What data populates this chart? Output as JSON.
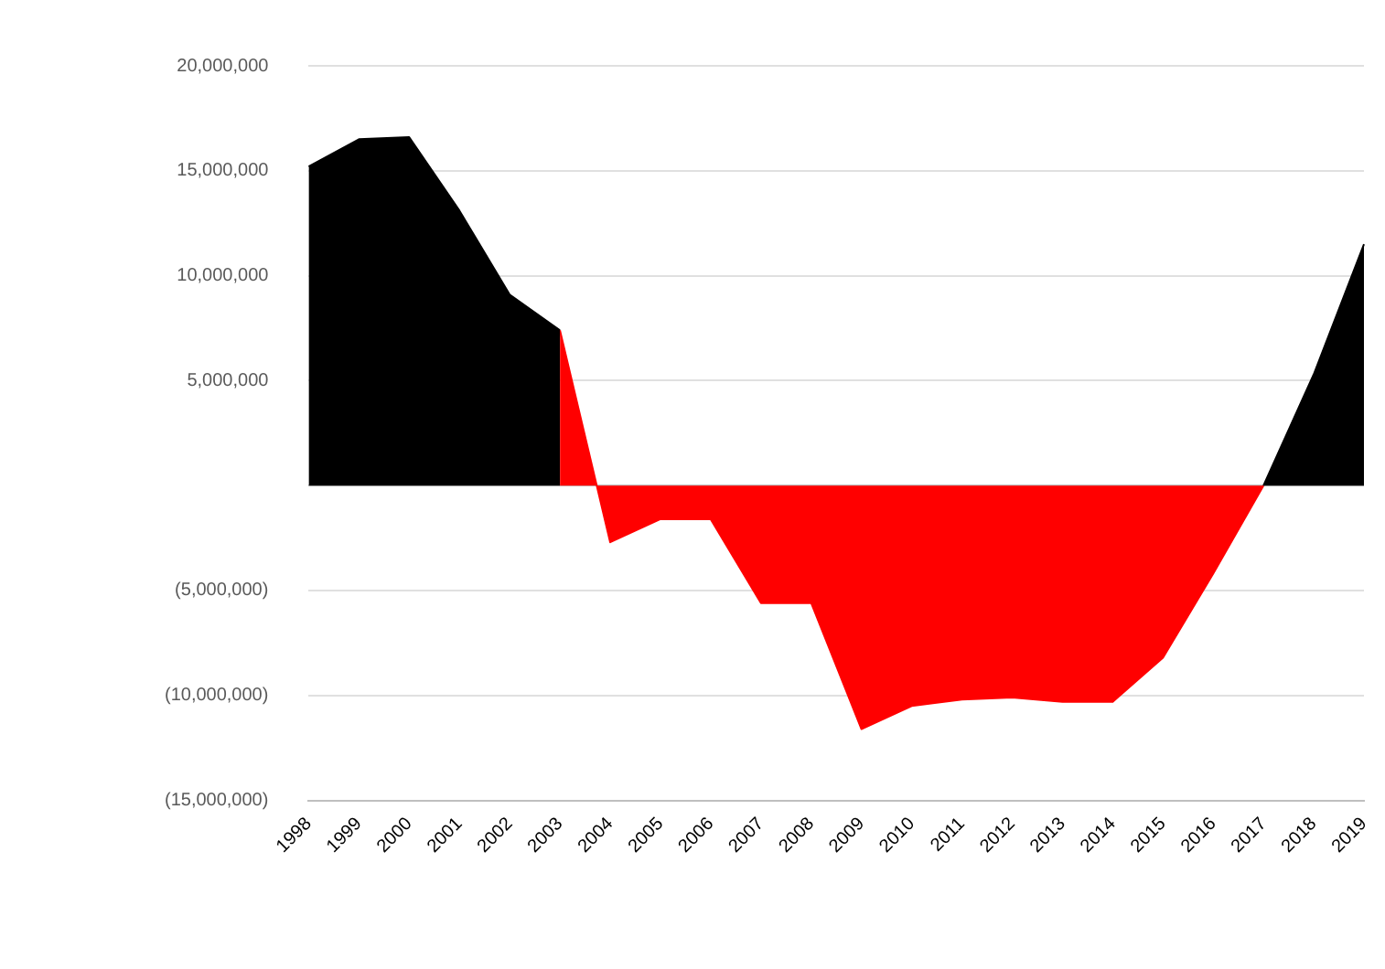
{
  "chart_data": {
    "type": "area",
    "categories": [
      "1998",
      "1999",
      "2000",
      "2001",
      "2002",
      "2003",
      "2004",
      "2005",
      "2006",
      "2007",
      "2008",
      "2009",
      "2010",
      "2011",
      "2012",
      "2013",
      "2014",
      "2015",
      "2016",
      "2017",
      "2018",
      "2019"
    ],
    "series": [
      {
        "color": "#000000",
        "values": [
          15200000,
          16500000,
          16600000,
          13100000,
          9100000,
          7400000,
          null,
          null,
          null,
          null,
          null,
          null,
          null,
          null,
          null,
          null,
          null,
          null,
          null,
          0,
          5300000,
          11500000
        ]
      },
      {
        "color": "#ff0000",
        "values": [
          null,
          null,
          null,
          null,
          null,
          7400000,
          -2700000,
          -1600000,
          -1600000,
          -5600000,
          -5600000,
          -11600000,
          -10500000,
          -10200000,
          -10100000,
          -10300000,
          -10300000,
          -8200000,
          -4200000,
          0,
          null,
          null
        ]
      }
    ],
    "ylim": [
      -15000000,
      20000000
    ],
    "yticks": [
      {
        "value": -15000000,
        "label": "(15,000,000)"
      },
      {
        "value": -10000000,
        "label": "(10,000,000)"
      },
      {
        "value": -5000000,
        "label": "(5,000,000)"
      },
      {
        "value": 0,
        "label": null
      },
      {
        "value": 5000000,
        "label": "5,000,000"
      },
      {
        "value": 10000000,
        "label": "10,000,000"
      },
      {
        "value": 15000000,
        "label": "15,000,000"
      },
      {
        "value": 20000000,
        "label": "20,000,000"
      }
    ],
    "grid": "y",
    "legend": false
  }
}
